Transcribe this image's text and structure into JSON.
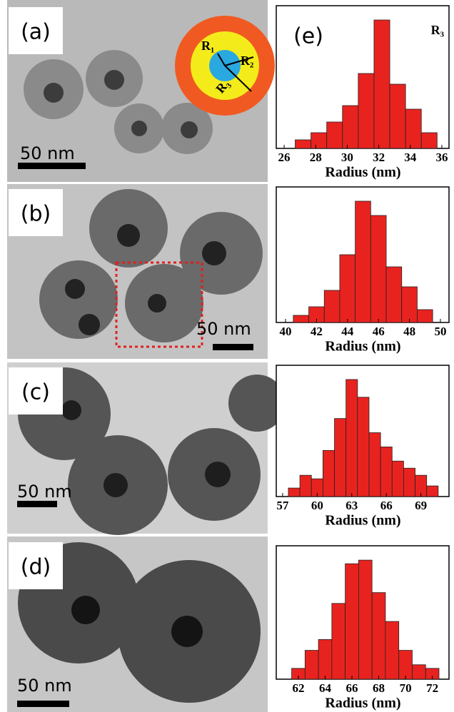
{
  "figure": {
    "panels": [
      {
        "label": "(a)",
        "scale": "50 nm"
      },
      {
        "label": "(b)",
        "scale": "50 nm"
      },
      {
        "label": "(c)",
        "scale": "50 nm"
      },
      {
        "label": "(d)",
        "scale": "50 nm"
      }
    ],
    "inset": {
      "labels": [
        "R₁",
        "R₂",
        "R₃"
      ]
    }
  },
  "chart_data": [
    {
      "type": "histogram",
      "panel_label": "(e)",
      "annotation": "R₃",
      "x_label": "Radius (nm)",
      "color": "#e8231f",
      "bins": [
        26.7,
        27.7,
        28.7,
        29.7,
        30.7,
        31.7,
        32.7,
        33.7,
        34.7,
        35.7
      ],
      "values": [
        12,
        22,
        37,
        60,
        105,
        180,
        90,
        55,
        22
      ],
      "xlim": [
        25.5,
        36.5
      ],
      "ylim": [
        0,
        190
      ],
      "xticks": [
        26,
        28,
        30,
        32,
        34,
        36
      ]
    },
    {
      "type": "histogram",
      "x_label": "Radius (nm)",
      "color": "#e8231f",
      "bins": [
        40.5,
        41.5,
        42.5,
        43.5,
        44.5,
        45.5,
        46.5,
        47.5,
        48.5,
        49.5
      ],
      "values": [
        10,
        22,
        45,
        95,
        170,
        150,
        78,
        50,
        18
      ],
      "xlim": [
        39.4,
        50.6
      ],
      "ylim": [
        0,
        180
      ],
      "xticks": [
        40,
        42,
        44,
        46,
        48,
        50
      ]
    },
    {
      "type": "histogram",
      "x_label": "Radius (nm)",
      "color": "#e8231f",
      "bins": [
        57.5,
        58.5,
        59.5,
        60.5,
        61.5,
        62.5,
        63.5,
        64.5,
        65.5,
        66.5,
        67.5,
        68.5,
        69.5,
        70.5
      ],
      "values": [
        12,
        30,
        25,
        65,
        110,
        165,
        140,
        90,
        70,
        50,
        40,
        30,
        15
      ],
      "xlim": [
        56.45,
        71.5
      ],
      "ylim": [
        0,
        175
      ],
      "xticks": [
        57,
        60,
        63,
        66,
        69
      ]
    },
    {
      "type": "histogram",
      "x_label": "Radius (nm)",
      "color": "#e8231f",
      "bins": [
        61.5,
        62.5,
        63.5,
        64.5,
        65.5,
        66.5,
        67.5,
        68.5,
        69.5,
        70.5,
        71.5,
        72.5
      ],
      "values": [
        15,
        40,
        55,
        105,
        160,
        165,
        120,
        80,
        40,
        20,
        15
      ],
      "xlim": [
        60.35,
        73.3
      ],
      "ylim": [
        0,
        175
      ],
      "xticks": [
        62,
        64,
        66,
        68,
        70,
        72
      ]
    }
  ]
}
